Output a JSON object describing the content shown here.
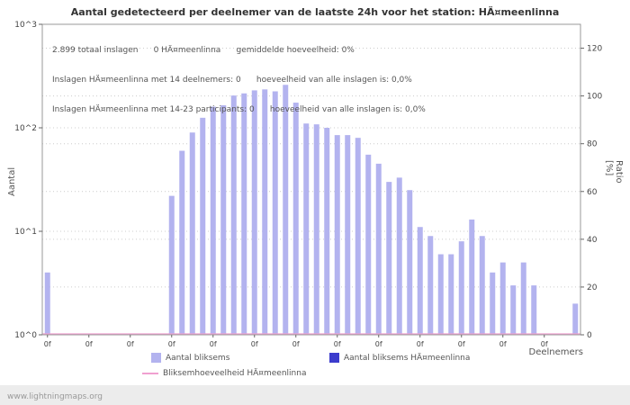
{
  "title": "Aantal gedetecteerd per deelnemer van de laatste 24h voor het station: HÄ¤meenlinna",
  "annotations": {
    "line1": "2.899 totaal inslagen      0 HÄ¤meenlinna      gemiddelde hoeveelheid: 0%",
    "line2": "Inslagen HÄ¤meenlinna met 14 deelnemers: 0      hoeveelheid van alle inslagen is: 0,0%",
    "line3": "Inslagen HÄ¤meenlinna met 14-23 participants: 0      hoeveelheid van alle inslagen is: 0,0%"
  },
  "axes": {
    "left_label": "Aantal",
    "right_label": "Ratio [%]",
    "x_label": "Deelnemers",
    "left_ticks": [
      "10^0",
      "10^1",
      "10^2",
      "10^3"
    ],
    "right_ticks": [
      0,
      20,
      40,
      60,
      80,
      100,
      120
    ]
  },
  "legend": {
    "items": [
      {
        "label": "Aantal bliksems",
        "color": "#b3b3ef",
        "type": "square"
      },
      {
        "label": "Aantal bliksems HÄ¤meenlinna",
        "color": "#3c3ccd",
        "type": "square"
      },
      {
        "label": "Bliksemhoeveelheid HÄ¤meenlinna",
        "color": "#f0a0d0",
        "type": "line"
      }
    ]
  },
  "footer": {
    "url": "www.lightningmaps.org"
  },
  "chart_data": {
    "type": "bar",
    "title": "Aantal gedetecteerd per deelnemer van de laatste 24h voor het station: HÄ¤meenlinna",
    "xlabel": "Deelnemers",
    "ylabel": "Aantal",
    "y2label": "Ratio [%]",
    "y_scale": "log",
    "ylim": [
      1,
      1000
    ],
    "y2lim": [
      0,
      130
    ],
    "grid": true,
    "legend_position": "bottom",
    "bar_color": "#b3b3ef",
    "x_tick_label": "0f",
    "x_tick_every": 4,
    "values": [
      4,
      1,
      1,
      1,
      1,
      1,
      1,
      1,
      1,
      1,
      1,
      1,
      22,
      60,
      90,
      125,
      160,
      165,
      205,
      215,
      230,
      235,
      225,
      260,
      175,
      110,
      108,
      100,
      85,
      85,
      80,
      55,
      45,
      30,
      33,
      25,
      11,
      9,
      6,
      6,
      8,
      13,
      9,
      4,
      5,
      3,
      5,
      3,
      1,
      1,
      1,
      2
    ],
    "ratio_series": {
      "name": "Bliksemhoeveelheid HÄ¤meenlinna",
      "value_percent": 0
    }
  }
}
